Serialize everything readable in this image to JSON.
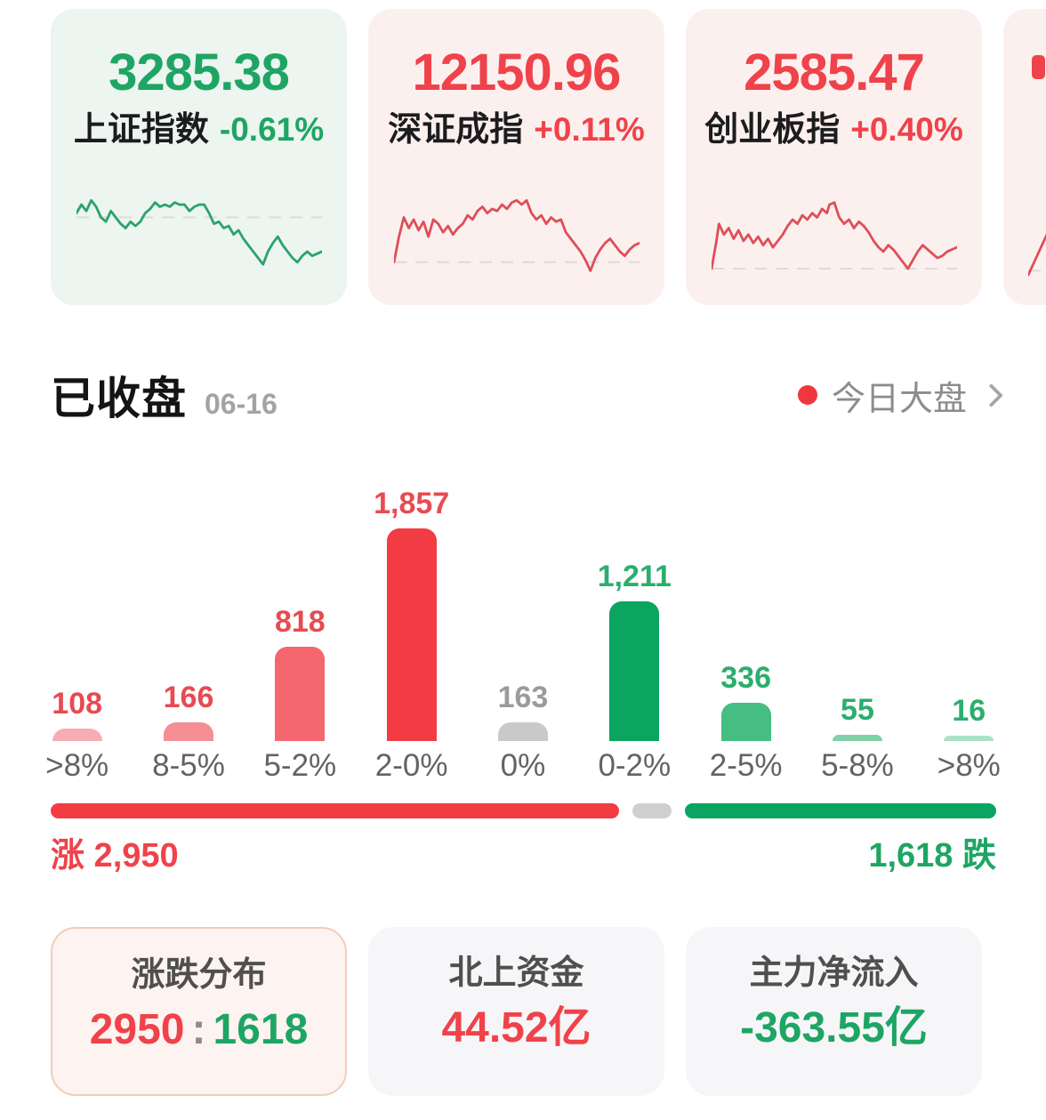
{
  "indices": [
    {
      "name": "上证指数",
      "value": "3285.38",
      "change": "-0.61%",
      "direction": "down",
      "spark": {
        "color": "#2aa36a",
        "baseline": 11,
        "points": [
          [
            0,
            9
          ],
          [
            2,
            5
          ],
          [
            4,
            8
          ],
          [
            6,
            3
          ],
          [
            8,
            6
          ],
          [
            10,
            11
          ],
          [
            12,
            13
          ],
          [
            14,
            8
          ],
          [
            16,
            11
          ],
          [
            18,
            14
          ],
          [
            20,
            16
          ],
          [
            22,
            13
          ],
          [
            24,
            15
          ],
          [
            26,
            13
          ],
          [
            28,
            9
          ],
          [
            30,
            7
          ],
          [
            32,
            4
          ],
          [
            34,
            6
          ],
          [
            36,
            5
          ],
          [
            38,
            6
          ],
          [
            40,
            4
          ],
          [
            42,
            5
          ],
          [
            44,
            5
          ],
          [
            46,
            8
          ],
          [
            48,
            6
          ],
          [
            50,
            5
          ],
          [
            52,
            5
          ],
          [
            54,
            9
          ],
          [
            56,
            14
          ],
          [
            58,
            13
          ],
          [
            60,
            16
          ],
          [
            62,
            15
          ],
          [
            64,
            19
          ],
          [
            66,
            17
          ],
          [
            68,
            21
          ],
          [
            70,
            24
          ],
          [
            72,
            27
          ],
          [
            74,
            30
          ],
          [
            76,
            33
          ],
          [
            78,
            27
          ],
          [
            80,
            23
          ],
          [
            82,
            20
          ],
          [
            84,
            24
          ],
          [
            86,
            27
          ],
          [
            88,
            30
          ],
          [
            90,
            32
          ],
          [
            92,
            29
          ],
          [
            94,
            27
          ],
          [
            96,
            29
          ],
          [
            98,
            28
          ],
          [
            100,
            27
          ]
        ]
      }
    },
    {
      "name": "深证成指",
      "value": "12150.96",
      "change": "+0.11%",
      "direction": "up",
      "spark": {
        "color": "#dd4f58",
        "baseline": 32,
        "points": [
          [
            0,
            32
          ],
          [
            2,
            20
          ],
          [
            4,
            11
          ],
          [
            6,
            16
          ],
          [
            8,
            12
          ],
          [
            10,
            17
          ],
          [
            12,
            13
          ],
          [
            14,
            20
          ],
          [
            16,
            12
          ],
          [
            18,
            14
          ],
          [
            20,
            18
          ],
          [
            22,
            15
          ],
          [
            24,
            19
          ],
          [
            26,
            16
          ],
          [
            28,
            14
          ],
          [
            30,
            10
          ],
          [
            32,
            12
          ],
          [
            34,
            8
          ],
          [
            36,
            6
          ],
          [
            38,
            9
          ],
          [
            40,
            7
          ],
          [
            42,
            8
          ],
          [
            44,
            5
          ],
          [
            46,
            7
          ],
          [
            48,
            4
          ],
          [
            50,
            3
          ],
          [
            52,
            5
          ],
          [
            54,
            3
          ],
          [
            56,
            9
          ],
          [
            58,
            12
          ],
          [
            60,
            10
          ],
          [
            62,
            14
          ],
          [
            64,
            11
          ],
          [
            66,
            13
          ],
          [
            68,
            12
          ],
          [
            70,
            18
          ],
          [
            72,
            21
          ],
          [
            74,
            24
          ],
          [
            76,
            27
          ],
          [
            78,
            31
          ],
          [
            80,
            36
          ],
          [
            82,
            30
          ],
          [
            84,
            26
          ],
          [
            86,
            23
          ],
          [
            88,
            21
          ],
          [
            90,
            24
          ],
          [
            92,
            27
          ],
          [
            94,
            29
          ],
          [
            96,
            26
          ],
          [
            98,
            24
          ],
          [
            100,
            23
          ]
        ]
      }
    },
    {
      "name": "创业板指",
      "value": "2585.47",
      "change": "+0.40%",
      "direction": "up",
      "spark": {
        "color": "#dd4f58",
        "baseline": 35,
        "points": [
          [
            0,
            35
          ],
          [
            2,
            22
          ],
          [
            3,
            14
          ],
          [
            5,
            19
          ],
          [
            7,
            16
          ],
          [
            9,
            21
          ],
          [
            11,
            17
          ],
          [
            13,
            22
          ],
          [
            15,
            19
          ],
          [
            17,
            23
          ],
          [
            19,
            20
          ],
          [
            21,
            24
          ],
          [
            23,
            21
          ],
          [
            25,
            25
          ],
          [
            27,
            22
          ],
          [
            29,
            19
          ],
          [
            31,
            15
          ],
          [
            33,
            12
          ],
          [
            35,
            14
          ],
          [
            37,
            10
          ],
          [
            39,
            12
          ],
          [
            41,
            9
          ],
          [
            43,
            11
          ],
          [
            45,
            7
          ],
          [
            47,
            9
          ],
          [
            48,
            5
          ],
          [
            50,
            4
          ],
          [
            52,
            11
          ],
          [
            54,
            14
          ],
          [
            56,
            12
          ],
          [
            58,
            16
          ],
          [
            60,
            13
          ],
          [
            62,
            15
          ],
          [
            64,
            18
          ],
          [
            66,
            22
          ],
          [
            68,
            25
          ],
          [
            70,
            27
          ],
          [
            72,
            24
          ],
          [
            74,
            26
          ],
          [
            76,
            29
          ],
          [
            78,
            32
          ],
          [
            80,
            35
          ],
          [
            82,
            31
          ],
          [
            84,
            27
          ],
          [
            86,
            24
          ],
          [
            88,
            26
          ],
          [
            90,
            28
          ],
          [
            92,
            30
          ],
          [
            94,
            29
          ],
          [
            96,
            27
          ],
          [
            98,
            26
          ],
          [
            100,
            25
          ]
        ]
      }
    }
  ],
  "partial_card": {
    "spark": {
      "color": "#dd4f58",
      "baseline": 36,
      "points": [
        [
          0,
          38
        ],
        [
          4,
          28
        ],
        [
          8,
          18
        ],
        [
          12,
          11
        ],
        [
          16,
          8
        ],
        [
          20,
          10
        ]
      ]
    }
  },
  "section": {
    "status": "已收盘",
    "date": "06-16",
    "market_link": "今日大盘"
  },
  "chart_data": {
    "type": "bar",
    "title": "涨跌分布",
    "categories": [
      ">8%",
      "8-5%",
      "5-2%",
      "2-0%",
      "0%",
      "0-2%",
      "2-5%",
      "5-8%",
      ">8%"
    ],
    "values": [
      108,
      166,
      818,
      1857,
      163,
      1211,
      336,
      55,
      16
    ],
    "value_labels": [
      "108",
      "166",
      "818",
      "1,857",
      "163",
      "1,211",
      "336",
      "55",
      "16"
    ],
    "bar_colors": [
      "#f7adb2",
      "#f68e95",
      "#f4676f",
      "#f23b43",
      "#c9c9c9",
      "#0ba561",
      "#45bd83",
      "#7fd2a7",
      "#abe2c6"
    ],
    "label_colors": [
      "#e74b52",
      "#e74b52",
      "#e74b52",
      "#e74b52",
      "#9b9b9b",
      "#2bae6d",
      "#2bae6d",
      "#2bae6d",
      "#2bae6d"
    ],
    "ylim": [
      0,
      1857
    ],
    "grid": false,
    "legend": false
  },
  "adv_decl": {
    "advance_label": "涨 2,950",
    "decline_label": "1,618 跌",
    "up": 2950,
    "flat": 163,
    "down": 1618
  },
  "footer_cards": [
    {
      "title": "涨跌分布",
      "value_left": "2950",
      "colon": ":",
      "value_right": "1618"
    },
    {
      "title": "北上资金",
      "value": "44.52亿"
    },
    {
      "title": "主力净流入",
      "value": "-363.55亿"
    }
  ],
  "colors": {
    "up_red": "#f0424a",
    "down_green": "#1ea564",
    "flat_gray": "#cfcfcf",
    "live_dot_red": "#f2363f"
  }
}
